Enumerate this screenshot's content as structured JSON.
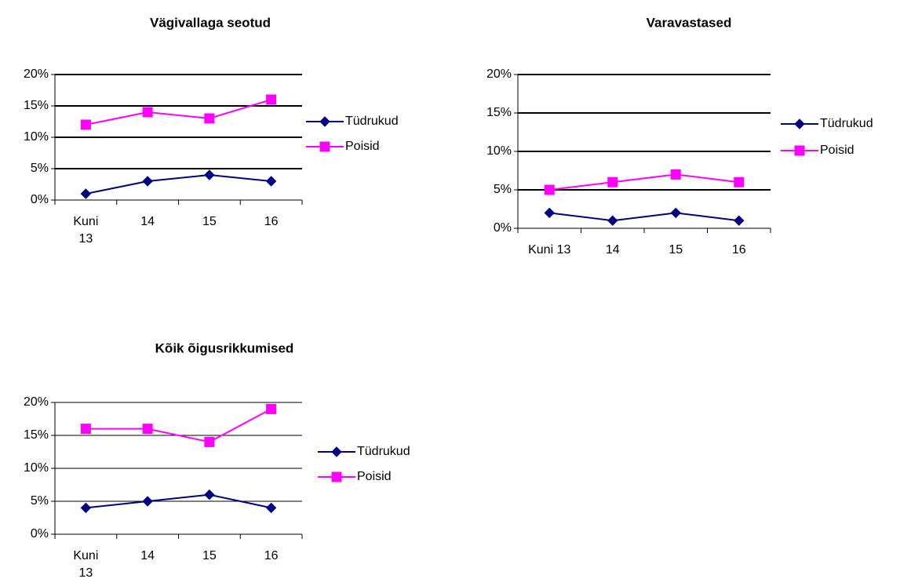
{
  "chart_data": [
    {
      "type": "line",
      "title": "Vägivallaga seotud",
      "categories": [
        "Kuni 13",
        "14",
        "15",
        "16"
      ],
      "series": [
        {
          "name": "Tüdrukud",
          "color": "#000080",
          "marker": "diamond",
          "values": [
            1,
            3,
            4,
            3
          ]
        },
        {
          "name": "Poisid",
          "color": "#ff00ff",
          "marker": "square",
          "values": [
            12,
            14,
            13,
            16
          ]
        }
      ],
      "ylim": [
        0,
        20
      ],
      "yticks": [
        {
          "value": 0,
          "label": "0%"
        },
        {
          "value": 5,
          "label": "5%"
        },
        {
          "value": 10,
          "label": "10%"
        },
        {
          "value": 15,
          "label": "15%"
        },
        {
          "value": 20,
          "label": "20%"
        }
      ],
      "grid": true,
      "legend": "right"
    },
    {
      "type": "line",
      "title": "Varavastased",
      "categories": [
        "Kuni 13",
        "14",
        "15",
        "16"
      ],
      "series": [
        {
          "name": "Tüdrukud",
          "color": "#000080",
          "marker": "diamond",
          "values": [
            2,
            1,
            2,
            1
          ]
        },
        {
          "name": "Poisid",
          "color": "#ff00ff",
          "marker": "square",
          "values": [
            5,
            6,
            7,
            6
          ]
        }
      ],
      "ylim": [
        0,
        20
      ],
      "yticks": [
        {
          "value": 0,
          "label": "0%"
        },
        {
          "value": 5,
          "label": "5%"
        },
        {
          "value": 10,
          "label": "10%"
        },
        {
          "value": 15,
          "label": "15%"
        },
        {
          "value": 20,
          "label": "20%"
        }
      ],
      "grid": true,
      "legend": "right"
    },
    {
      "type": "line",
      "title": "Kõik õigusrikkumised",
      "categories": [
        "Kuni 13",
        "14",
        "15",
        "16"
      ],
      "series": [
        {
          "name": "Tüdrukud",
          "color": "#000080",
          "marker": "diamond",
          "values": [
            4,
            5,
            6,
            4
          ]
        },
        {
          "name": "Poisid",
          "color": "#ff00ff",
          "marker": "square",
          "values": [
            16,
            16,
            14,
            19
          ]
        }
      ],
      "ylim": [
        0,
        20
      ],
      "yticks": [
        {
          "value": 0,
          "label": "0%"
        },
        {
          "value": 5,
          "label": "5%"
        },
        {
          "value": 10,
          "label": "10%"
        },
        {
          "value": 15,
          "label": "15%"
        },
        {
          "value": 20,
          "label": "20%"
        }
      ],
      "grid": true,
      "legend": "right"
    }
  ]
}
